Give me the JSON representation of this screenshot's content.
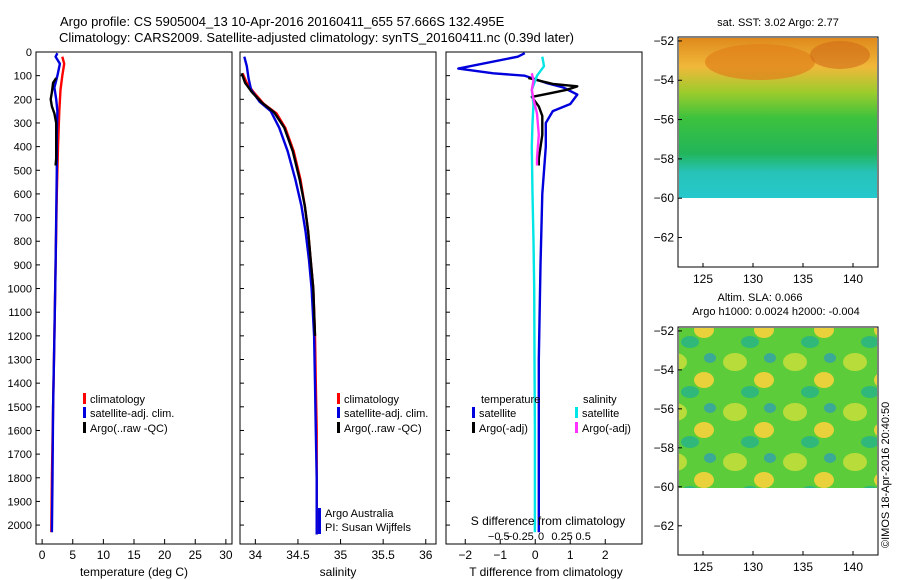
{
  "header": {
    "title_line1": "Argo profile: CS 5905004_13 10-Apr-2016 20160411_655 57.666S 132.495E",
    "title_line2": "Climatology: CARS2009. Satellite-adjusted climatology: synTS_20160411.nc (0.39d later)"
  },
  "colors": {
    "climatology": "#ff0000",
    "satellite_clim": "#0000dd",
    "argo": "#000000",
    "s_satellite": "#00e5e5",
    "s_argo": "#ff33ff"
  },
  "chart_data": [
    {
      "type": "line",
      "panel": "temperature",
      "xlabel": "temperature (deg C)",
      "ylabel": "",
      "xlim": [
        -1,
        31
      ],
      "ylim": [
        2080,
        0
      ],
      "xticks": [
        0,
        5,
        10,
        15,
        20,
        25,
        30
      ],
      "yticks": [
        0,
        100,
        200,
        300,
        400,
        500,
        600,
        700,
        800,
        900,
        1000,
        1100,
        1200,
        1300,
        1400,
        1500,
        1600,
        1700,
        1800,
        1900,
        2000
      ],
      "legend": [
        "climatology",
        "satellite-adj. clim.",
        "Argo(..raw -QC)"
      ],
      "series": [
        {
          "name": "climatology",
          "color_key": "climatology",
          "points": [
            [
              3.3,
              20
            ],
            [
              3.6,
              50
            ],
            [
              3.3,
              100
            ],
            [
              3.0,
              160
            ],
            [
              2.8,
              250
            ],
            [
              2.6,
              400
            ],
            [
              2.4,
              600
            ],
            [
              2.2,
              900
            ],
            [
              2.0,
              1200
            ],
            [
              1.8,
              1500
            ],
            [
              1.6,
              1800
            ],
            [
              1.5,
              2030
            ]
          ]
        },
        {
          "name": "satellite-adj. clim.",
          "color_key": "satellite_clim",
          "points": [
            [
              2.5,
              5
            ],
            [
              2.2,
              20
            ],
            [
              2.9,
              50
            ],
            [
              2.5,
              100
            ],
            [
              2.0,
              150
            ],
            [
              2.3,
              200
            ],
            [
              2.5,
              250
            ],
            [
              2.4,
              350
            ],
            [
              2.4,
              500
            ],
            [
              2.3,
              700
            ],
            [
              2.2,
              900
            ],
            [
              2.0,
              1200
            ],
            [
              1.8,
              1500
            ],
            [
              1.7,
              1800
            ],
            [
              1.6,
              2030
            ]
          ]
        },
        {
          "name": "Argo(..raw -QC)",
          "color_key": "argo",
          "points": [
            [
              2.3,
              110
            ],
            [
              1.8,
              130
            ],
            [
              1.6,
              170
            ],
            [
              1.4,
              200
            ],
            [
              1.6,
              230
            ],
            [
              2.0,
              260
            ],
            [
              2.3,
              300
            ],
            [
              2.3,
              350
            ],
            [
              2.3,
              400
            ],
            [
              2.3,
              450
            ],
            [
              2.2,
              480
            ]
          ]
        }
      ]
    },
    {
      "type": "line",
      "panel": "salinity",
      "xlabel": "salinity",
      "ylabel": "",
      "xlim": [
        33.82,
        36.12
      ],
      "ylim": [
        2080,
        0
      ],
      "xticks": [
        34,
        34.5,
        35,
        35.5,
        36
      ],
      "xtick_labels": [
        "34",
        "34.5",
        "35",
        "35.5",
        "36"
      ],
      "legend": [
        "climatology",
        "satellite-adj. clim.",
        "Argo(..raw -QC)"
      ],
      "annotations": [
        "Argo Australia",
        "PI: Susan Wijffels"
      ],
      "series": [
        {
          "name": "climatology",
          "color_key": "climatology",
          "points": [
            [
              33.85,
              90
            ],
            [
              33.9,
              130
            ],
            [
              33.98,
              170
            ],
            [
              34.1,
              220
            ],
            [
              34.25,
              260
            ],
            [
              34.35,
              320
            ],
            [
              34.45,
              420
            ],
            [
              34.53,
              540
            ],
            [
              34.58,
              650
            ],
            [
              34.62,
              760
            ],
            [
              34.65,
              880
            ],
            [
              34.68,
              1000
            ],
            [
              34.7,
              1200
            ],
            [
              34.71,
              1400
            ],
            [
              34.72,
              1600
            ],
            [
              34.72,
              1800
            ],
            [
              34.72,
              2040
            ]
          ]
        },
        {
          "name": "satellite-adj. clim.",
          "color_key": "satellite_clim",
          "points": [
            [
              33.87,
              20
            ],
            [
              33.9,
              60
            ],
            [
              33.92,
              110
            ],
            [
              33.95,
              160
            ],
            [
              34.05,
              210
            ],
            [
              34.18,
              250
            ],
            [
              34.28,
              320
            ],
            [
              34.38,
              420
            ],
            [
              34.47,
              540
            ],
            [
              34.54,
              650
            ],
            [
              34.59,
              760
            ],
            [
              34.63,
              880
            ],
            [
              34.66,
              1000
            ],
            [
              34.69,
              1200
            ],
            [
              34.7,
              1400
            ],
            [
              34.71,
              1600
            ],
            [
              34.72,
              1800
            ],
            [
              34.72,
              2040
            ]
          ]
        },
        {
          "name": "Argo(..raw -QC)",
          "color_key": "argo",
          "points": [
            [
              33.84,
              90
            ],
            [
              33.88,
              130
            ],
            [
              33.96,
              170
            ],
            [
              34.08,
              215
            ],
            [
              34.22,
              255
            ],
            [
              34.34,
              320
            ],
            [
              34.44,
              420
            ],
            [
              34.52,
              540
            ],
            [
              34.58,
              650
            ],
            [
              34.62,
              760
            ],
            [
              34.65,
              880
            ],
            [
              34.68,
              1000
            ],
            [
              34.7,
              1200
            ]
          ]
        }
      ]
    },
    {
      "type": "line",
      "panel": "difference",
      "xlabel": "T difference from climatology",
      "top_axis_label": "S difference from climatology",
      "xlim": [
        -2.55,
        3.05
      ],
      "ylim": [
        2080,
        0
      ],
      "xticks": [
        -2,
        -1,
        0,
        1,
        2
      ],
      "xtick_labels": [
        "−2",
        "−1",
        "0",
        "1",
        "2"
      ],
      "s_xticks": [
        -0.5,
        -0.25,
        0,
        0.25,
        0.5
      ],
      "s_xtick_labels": [
        "−0.5",
        "−0.25",
        "0",
        "0.25",
        "0.5"
      ],
      "legend_headers": [
        "temperature",
        "salinity"
      ],
      "legend": [
        "satellite",
        "Argo(-adj)",
        "satellite",
        "Argo(-adj)"
      ],
      "series": [
        {
          "name": "temperature satellite",
          "color_key": "satellite_clim",
          "points": [
            [
              -0.3,
              5
            ],
            [
              -0.5,
              20
            ],
            [
              -2.2,
              70
            ],
            [
              -1.2,
              90
            ],
            [
              -0.3,
              100
            ],
            [
              0.3,
              130
            ],
            [
              0.8,
              150
            ],
            [
              1.2,
              180
            ],
            [
              1.0,
              220
            ],
            [
              0.5,
              250
            ],
            [
              0.3,
              300
            ],
            [
              0.3,
              400
            ],
            [
              0.2,
              600
            ],
            [
              0.15,
              900
            ],
            [
              0.1,
              1300
            ],
            [
              0.1,
              1700
            ],
            [
              0.1,
              2030
            ]
          ]
        },
        {
          "name": "temperature Argo(-adj)",
          "color_key": "argo",
          "points": [
            [
              -0.2,
              110
            ],
            [
              0.5,
              135
            ],
            [
              1.2,
              145
            ],
            [
              0.9,
              160
            ],
            [
              0.4,
              175
            ],
            [
              -0.1,
              190
            ],
            [
              0.1,
              230
            ],
            [
              0.2,
              270
            ],
            [
              0.2,
              350
            ],
            [
              0.1,
              450
            ],
            [
              0.1,
              480
            ]
          ]
        },
        {
          "name": "salinity satellite",
          "color_key": "s_satellite",
          "points": [
            [
              0.2,
              20
            ],
            [
              0.25,
              60
            ],
            [
              0.05,
              100
            ],
            [
              -0.1,
              160
            ],
            [
              -0.05,
              220
            ],
            [
              -0.08,
              300
            ],
            [
              -0.1,
              400
            ],
            [
              -0.08,
              600
            ],
            [
              -0.05,
              800
            ],
            [
              -0.03,
              1000
            ],
            [
              -0.02,
              1300
            ],
            [
              -0.01,
              1600
            ],
            [
              -0.01,
              2030
            ]
          ]
        },
        {
          "name": "salinity Argo(-adj)",
          "color_key": "s_argo",
          "points": [
            [
              -0.1,
              90
            ],
            [
              -0.05,
              120
            ],
            [
              -0.1,
              160
            ],
            [
              -0.05,
              200
            ],
            [
              0.05,
              260
            ],
            [
              0.1,
              350
            ],
            [
              0.05,
              450
            ],
            [
              0.05,
              480
            ]
          ]
        }
      ]
    },
    {
      "type": "heatmap",
      "panel": "sst_map",
      "title": "sat. SST: 3.02 Argo: 2.77",
      "xlim": [
        122.5,
        142.5
      ],
      "ylim": [
        -63.5,
        -51.8
      ],
      "xticks": [
        125,
        130,
        135,
        140
      ],
      "yticks": [
        -52,
        -54,
        -56,
        -58,
        -60,
        -62
      ],
      "data_extent_lat": [
        -60,
        -51.8
      ]
    },
    {
      "type": "heatmap",
      "panel": "sla_map",
      "title_line1": "Altim. SLA: 0.066",
      "title_line2": "Argo h1000: 0.0024 h2000: -0.004",
      "xlim": [
        122.5,
        142.5
      ],
      "ylim": [
        -63.5,
        -51.8
      ],
      "xticks": [
        125,
        130,
        135,
        140
      ],
      "yticks": [
        -52,
        -54,
        -56,
        -58,
        -60,
        -62
      ],
      "data_extent_lat": [
        -60,
        -51.8
      ]
    }
  ],
  "credit": "©IMOS 18-Apr-2016 20:40:50"
}
